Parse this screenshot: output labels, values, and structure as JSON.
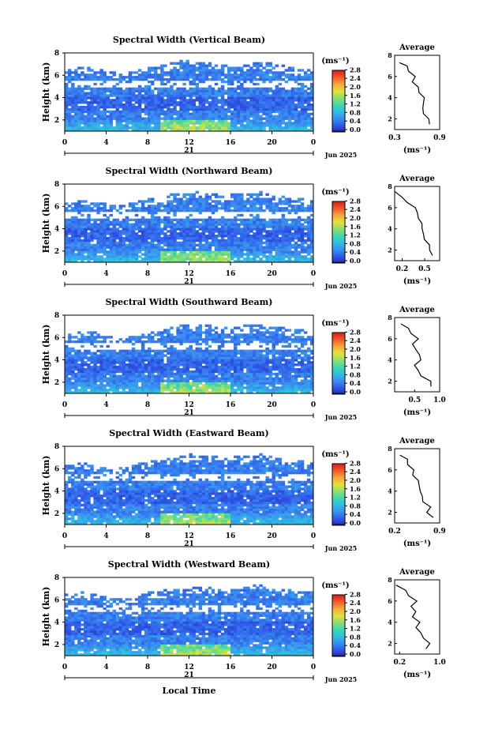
{
  "figure": {
    "date_label": "Jun 2025",
    "day_label": "21",
    "xlabel": "Local Time",
    "ylabel": "Height (km)",
    "unit_label": "(ms⁻¹)",
    "avg_title": "Average",
    "avg_xlabel": "(ms⁻¹)",
    "x_ticks": [
      "0",
      "4",
      "8",
      "12",
      "16",
      "20",
      "0"
    ],
    "y_ticks": [
      "2",
      "4",
      "6",
      "8"
    ],
    "colorbar_ticks": [
      "0.0",
      "0.4",
      "0.8",
      "1.2",
      "1.6",
      "2.0",
      "2.4",
      "2.8"
    ],
    "colorscale": [
      "#1a1a1a",
      "#2525b8",
      "#2f5ae8",
      "#3a8ff0",
      "#2ec0e0",
      "#3fd6b0",
      "#8ce070",
      "#e6e03a",
      "#f5a83a",
      "#f05a2a",
      "#d92020"
    ]
  },
  "chart_data": [
    {
      "type": "heatmap",
      "title": "Spectral Width (Vertical Beam)",
      "xlim": [
        0,
        24
      ],
      "ylim": [
        1,
        8
      ],
      "clim": [
        0,
        2.8
      ],
      "cloud_top_km": [
        6.3,
        6.5,
        6.4,
        6.3,
        6.1,
        5.9,
        6.0,
        6.2,
        6.4,
        6.6,
        6.8,
        7.0,
        6.9,
        6.8,
        6.7,
        6.6,
        6.5,
        6.7,
        6.9,
        6.8,
        6.6,
        6.4,
        6.3,
        6.2
      ],
      "avg": {
        "xlim": [
          0.3,
          0.9
        ],
        "xticks": [
          "0.3",
          "0.9"
        ],
        "ylim": [
          1,
          8
        ],
        "height_km": [
          1.5,
          2.0,
          2.5,
          3.0,
          3.5,
          4.0,
          4.5,
          5.0,
          5.5,
          6.0,
          6.5,
          7.0,
          7.3
        ],
        "width": [
          0.78,
          0.74,
          0.7,
          0.66,
          0.7,
          0.68,
          0.64,
          0.6,
          0.55,
          0.56,
          0.5,
          0.45,
          0.38
        ]
      }
    },
    {
      "type": "heatmap",
      "title": "Spectral Width (Northward Beam)",
      "xlim": [
        0,
        24
      ],
      "ylim": [
        1,
        8
      ],
      "clim": [
        0,
        2.8
      ],
      "cloud_top_km": [
        6.0,
        6.2,
        6.1,
        6.0,
        5.8,
        5.9,
        6.1,
        6.3,
        6.5,
        6.6,
        6.8,
        6.9,
        7.0,
        6.9,
        6.8,
        6.7,
        6.8,
        6.9,
        7.0,
        6.8,
        6.6,
        6.5,
        6.4,
        6.3
      ],
      "avg": {
        "xlim": [
          0.1,
          0.7
        ],
        "xticks": [
          "0.2",
          "0.5"
        ],
        "ylim": [
          1,
          8
        ],
        "height_km": [
          1.5,
          2.0,
          2.5,
          3.0,
          3.5,
          4.0,
          4.5,
          5.0,
          5.5,
          6.0,
          6.5,
          7.0,
          7.5
        ],
        "width": [
          0.62,
          0.55,
          0.58,
          0.48,
          0.5,
          0.45,
          0.48,
          0.4,
          0.42,
          0.36,
          0.28,
          0.18,
          0.12
        ]
      }
    },
    {
      "type": "heatmap",
      "title": "Spectral Width (Southward Beam)",
      "xlim": [
        0,
        24
      ],
      "ylim": [
        1,
        8
      ],
      "clim": [
        0,
        2.8
      ],
      "cloud_top_km": [
        6.1,
        6.3,
        6.2,
        6.0,
        5.8,
        5.7,
        5.9,
        6.1,
        6.3,
        6.5,
        6.7,
        6.8,
        6.9,
        6.8,
        6.7,
        6.6,
        6.7,
        6.8,
        6.9,
        6.8,
        6.6,
        6.5,
        6.4,
        6.3
      ],
      "avg": {
        "xlim": [
          0.1,
          1.0
        ],
        "xticks": [
          "0.5",
          "1.0"
        ],
        "ylim": [
          1,
          8
        ],
        "height_km": [
          1.5,
          2.0,
          2.5,
          3.0,
          3.5,
          4.0,
          4.5,
          5.0,
          5.5,
          6.0,
          6.5,
          7.0,
          7.4
        ],
        "width": [
          0.85,
          0.8,
          0.65,
          0.55,
          0.52,
          0.6,
          0.62,
          0.5,
          0.48,
          0.55,
          0.45,
          0.35,
          0.25
        ]
      }
    },
    {
      "type": "heatmap",
      "title": "Spectral Width (Eastward Beam)",
      "xlim": [
        0,
        24
      ],
      "ylim": [
        1,
        8
      ],
      "clim": [
        0,
        2.8
      ],
      "cloud_top_km": [
        6.0,
        6.2,
        6.1,
        5.9,
        5.7,
        5.8,
        6.0,
        6.2,
        6.4,
        6.6,
        6.8,
        6.9,
        7.0,
        6.9,
        6.8,
        6.7,
        6.8,
        6.9,
        7.0,
        6.9,
        6.7,
        6.5,
        6.4,
        6.3
      ],
      "avg": {
        "xlim": [
          0.2,
          0.9
        ],
        "xticks": [
          "0.2",
          "0.9"
        ],
        "ylim": [
          1,
          8
        ],
        "height_km": [
          1.5,
          2.0,
          2.5,
          3.0,
          3.5,
          4.0,
          4.5,
          5.0,
          5.5,
          6.0,
          6.5,
          7.0,
          7.4
        ],
        "width": [
          0.82,
          0.68,
          0.78,
          0.62,
          0.65,
          0.58,
          0.6,
          0.55,
          0.5,
          0.48,
          0.42,
          0.38,
          0.3
        ]
      }
    },
    {
      "type": "heatmap",
      "title": "Spectral Width (Westward Beam)",
      "xlim": [
        0,
        24
      ],
      "ylim": [
        1,
        8
      ],
      "clim": [
        0,
        2.8
      ],
      "cloud_top_km": [
        6.2,
        6.4,
        6.3,
        6.1,
        5.9,
        5.8,
        6.0,
        6.2,
        6.4,
        6.6,
        6.7,
        6.8,
        6.9,
        6.8,
        6.7,
        6.6,
        6.7,
        6.9,
        7.0,
        6.9,
        6.7,
        6.6,
        6.5,
        6.4
      ],
      "avg": {
        "xlim": [
          0.1,
          1.0
        ],
        "xticks": [
          "0.2",
          "1.0"
        ],
        "ylim": [
          1,
          8
        ],
        "height_km": [
          1.5,
          2.0,
          2.5,
          3.0,
          3.5,
          4.0,
          4.5,
          5.0,
          5.5,
          6.0,
          6.5,
          7.0,
          7.5
        ],
        "width": [
          0.75,
          0.78,
          0.7,
          0.6,
          0.55,
          0.58,
          0.48,
          0.5,
          0.45,
          0.52,
          0.4,
          0.3,
          0.15
        ]
      }
    }
  ]
}
